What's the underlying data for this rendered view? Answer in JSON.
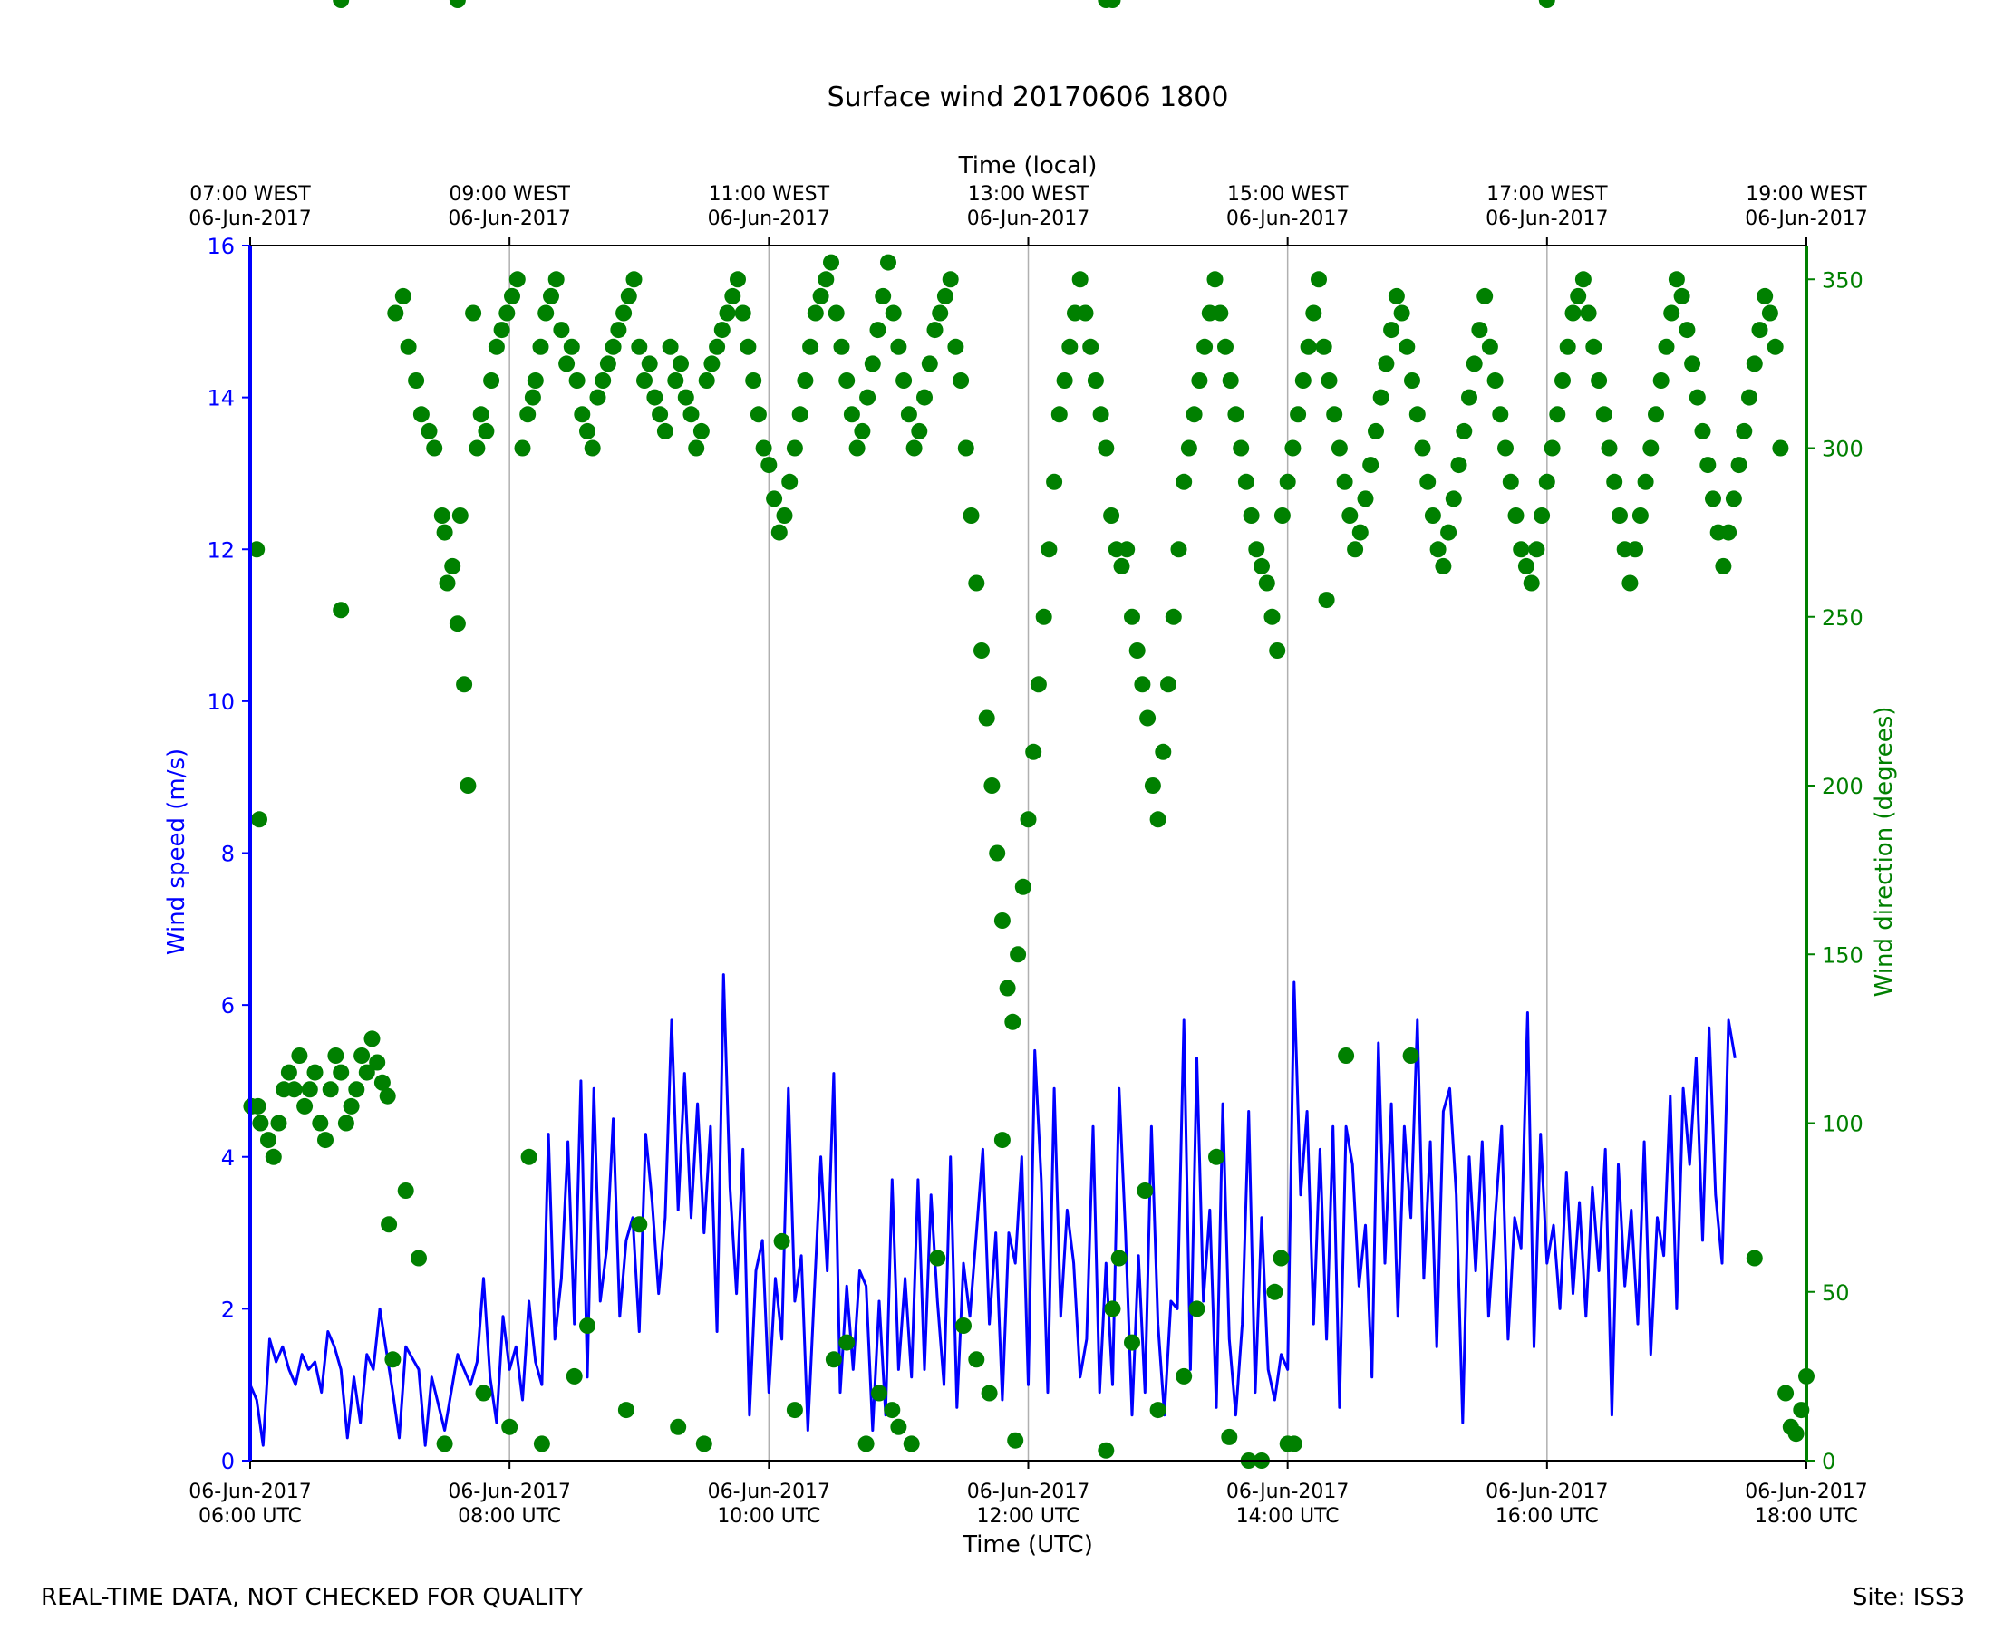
{
  "chart_data": {
    "type": "line+scatter",
    "title": "Surface wind 20170606 1800",
    "xlabel_bottom": "Time (UTC)",
    "xlabel_top": "Time (local)",
    "ylabel_left": "Wind speed (m/s)",
    "ylabel_right": "Wind direction (degrees)",
    "x_range_hours_utc": [
      6,
      18
    ],
    "ylim_left": [
      0,
      16
    ],
    "ylim_right": [
      0,
      360
    ],
    "grid": "vertical lines at 2-hour ticks",
    "colors": {
      "speed": "#0000ff",
      "direction": "#008000",
      "grid": "#b0b0b0"
    },
    "bottom_ticks": [
      {
        "hour": 6,
        "date": "06-Jun-2017",
        "time": "06:00 UTC"
      },
      {
        "hour": 8,
        "date": "06-Jun-2017",
        "time": "08:00 UTC"
      },
      {
        "hour": 10,
        "date": "06-Jun-2017",
        "time": "10:00 UTC"
      },
      {
        "hour": 12,
        "date": "06-Jun-2017",
        "time": "12:00 UTC"
      },
      {
        "hour": 14,
        "date": "06-Jun-2017",
        "time": "14:00 UTC"
      },
      {
        "hour": 16,
        "date": "06-Jun-2017",
        "time": "16:00 UTC"
      },
      {
        "hour": 18,
        "date": "06-Jun-2017",
        "time": "18:00 UTC"
      }
    ],
    "top_ticks": [
      {
        "hour": 6,
        "time": "07:00 WEST",
        "date": "06-Jun-2017"
      },
      {
        "hour": 8,
        "time": "09:00 WEST",
        "date": "06-Jun-2017"
      },
      {
        "hour": 10,
        "time": "11:00 WEST",
        "date": "06-Jun-2017"
      },
      {
        "hour": 12,
        "time": "13:00 WEST",
        "date": "06-Jun-2017"
      },
      {
        "hour": 14,
        "time": "15:00 WEST",
        "date": "06-Jun-2017"
      },
      {
        "hour": 16,
        "time": "17:00 WEST",
        "date": "06-Jun-2017"
      },
      {
        "hour": 18,
        "time": "19:00 WEST",
        "date": "06-Jun-2017"
      }
    ],
    "left_ticks": [
      "0",
      "2",
      "4",
      "6",
      "8",
      "10",
      "12",
      "14",
      "16"
    ],
    "right_ticks": [
      "0",
      "50",
      "100",
      "150",
      "200",
      "250",
      "300",
      "350"
    ],
    "wind_speed_series": {
      "x_hours_utc": [
        6.0,
        6.05,
        6.1,
        6.15,
        6.2,
        6.25,
        6.3,
        6.35,
        6.4,
        6.45,
        6.5,
        6.55,
        6.6,
        6.65,
        6.7,
        6.75,
        6.8,
        6.85,
        6.9,
        6.95,
        7.0,
        7.1,
        7.15,
        7.2,
        7.3,
        7.35,
        7.4,
        7.5,
        7.6,
        7.7,
        7.75,
        7.8,
        7.85,
        7.9,
        7.95,
        8.0,
        8.05,
        8.1,
        8.15,
        8.2,
        8.25,
        8.3,
        8.35,
        8.4,
        8.45,
        8.5,
        8.55,
        8.6,
        8.65,
        8.7,
        8.75,
        8.8,
        8.85,
        8.9,
        8.95,
        9.0,
        9.05,
        9.1,
        9.15,
        9.2,
        9.25,
        9.3,
        9.35,
        9.4,
        9.45,
        9.5,
        9.55,
        9.6,
        9.65,
        9.7,
        9.75,
        9.8,
        9.85,
        9.9,
        9.95,
        10.0,
        10.05,
        10.1,
        10.15,
        10.2,
        10.25,
        10.3,
        10.35,
        10.4,
        10.45,
        10.5,
        10.55,
        10.6,
        10.65,
        10.7,
        10.75,
        10.8,
        10.85,
        10.9,
        10.95,
        11.0,
        11.05,
        11.1,
        11.15,
        11.2,
        11.25,
        11.3,
        11.35,
        11.4,
        11.45,
        11.5,
        11.55,
        11.6,
        11.65,
        11.7,
        11.75,
        11.8,
        11.85,
        11.9,
        11.95,
        12.0,
        12.05,
        12.1,
        12.15,
        12.2,
        12.25,
        12.3,
        12.35,
        12.4,
        12.45,
        12.5,
        12.55,
        12.6,
        12.65,
        12.7,
        12.75,
        12.8,
        12.85,
        12.9,
        12.95,
        13.0,
        13.05,
        13.1,
        13.15,
        13.2,
        13.25,
        13.3,
        13.35,
        13.4,
        13.45,
        13.5,
        13.55,
        13.6,
        13.65,
        13.7,
        13.75,
        13.8,
        13.85,
        13.9,
        13.95,
        14.0,
        14.05,
        14.1,
        14.15,
        14.2,
        14.25,
        14.3,
        14.35,
        14.4,
        14.45,
        14.5,
        14.55,
        14.6,
        14.65,
        14.7,
        14.75,
        14.8,
        14.85,
        14.9,
        14.95,
        15.0,
        15.05,
        15.1,
        15.15,
        15.2,
        15.25,
        15.3,
        15.35,
        15.4,
        15.45,
        15.5,
        15.55,
        15.6,
        15.65,
        15.7,
        15.75,
        15.8,
        15.85,
        15.9,
        15.95,
        16.0,
        16.05,
        16.1,
        16.15,
        16.2,
        16.25,
        16.3,
        16.35,
        16.4,
        16.45,
        16.5,
        16.55,
        16.6,
        16.65,
        16.7,
        16.75,
        16.8,
        16.85,
        16.9,
        16.95,
        17.0,
        17.05,
        17.1,
        17.15,
        17.2,
        17.25,
        17.3,
        17.35,
        17.4,
        17.45,
        17.5,
        17.55,
        17.6,
        17.65,
        17.7,
        17.75,
        17.8,
        17.85,
        17.9,
        17.95,
        18.0
      ],
      "values_m_s": [
        1.0,
        0.8,
        0.2,
        1.6,
        1.3,
        1.5,
        1.2,
        1.0,
        1.4,
        1.2,
        1.3,
        0.9,
        1.7,
        1.5,
        1.2,
        0.3,
        1.1,
        0.5,
        1.4,
        1.2,
        2.0,
        0.9,
        0.3,
        1.5,
        1.2,
        0.2,
        1.1,
        0.4,
        1.4,
        1.0,
        1.3,
        2.4,
        1.1,
        0.5,
        1.9,
        1.2,
        1.5,
        0.8,
        2.1,
        1.3,
        1.0,
        4.3,
        1.6,
        2.4,
        4.2,
        1.8,
        5.0,
        1.1,
        4.9,
        2.1,
        2.8,
        4.5,
        1.9,
        2.9,
        3.2,
        1.7,
        4.3,
        3.4,
        2.2,
        3.2,
        5.8,
        3.3,
        5.1,
        3.2,
        4.7,
        3.0,
        4.4,
        1.7,
        6.4,
        3.6,
        2.2,
        4.1,
        0.6,
        2.5,
        2.9,
        0.9,
        2.4,
        1.6,
        4.9,
        2.1,
        2.7,
        0.4,
        2.2,
        4.0,
        2.5,
        5.1,
        0.9,
        2.3,
        1.2,
        2.5,
        2.3,
        0.4,
        2.1,
        0.6,
        3.7,
        1.2,
        2.4,
        1.1,
        3.7,
        1.2,
        3.5,
        2.1,
        1.0,
        4.0,
        0.7,
        2.6,
        1.9,
        3.0,
        4.1,
        1.8,
        3.0,
        0.8,
        3.0,
        2.6,
        4.0,
        1.0,
        5.4,
        3.7,
        0.9,
        4.9,
        1.9,
        3.3,
        2.6,
        1.1,
        1.6,
        4.4,
        0.9,
        2.6,
        1.0,
        4.9,
        3.0,
        0.6,
        2.7,
        0.9,
        4.4,
        1.8,
        0.6,
        2.1,
        2.0,
        5.8,
        1.2,
        5.3,
        2.1,
        3.3,
        0.7,
        4.7,
        1.6,
        0.6,
        1.8,
        4.6,
        0.9,
        3.2,
        1.2,
        0.8,
        1.4,
        1.2,
        6.3,
        3.5,
        4.6,
        1.8,
        4.1,
        1.6,
        4.4,
        0.7,
        4.4,
        3.9,
        2.3,
        3.1,
        1.1,
        5.5,
        2.6,
        4.7,
        1.9,
        4.4,
        3.2,
        5.8,
        2.4,
        4.2,
        1.5,
        4.6,
        4.9,
        3.5,
        0.5,
        4.0,
        2.5,
        4.2,
        1.9,
        3.2,
        4.4,
        1.6,
        3.2,
        2.8,
        5.9,
        1.5,
        4.3,
        2.6,
        3.1,
        2.0,
        3.8,
        2.2,
        3.4,
        1.9,
        3.6,
        2.5,
        4.1,
        0.6,
        3.9,
        2.3,
        3.3,
        1.8,
        4.2,
        1.4,
        3.2,
        2.7,
        4.8,
        2.0,
        4.9,
        3.9,
        5.3,
        2.9,
        5.7,
        3.5,
        2.6,
        5.8,
        5.3
      ]
    },
    "wind_direction_series": {
      "x_hours_utc": [
        6.01,
        6.06,
        6.08,
        6.14,
        6.18,
        6.22,
        6.26,
        6.3,
        6.34,
        6.38,
        6.42,
        6.46,
        6.5,
        6.54,
        6.58,
        6.62,
        6.66,
        6.7,
        6.74,
        6.78,
        6.82,
        6.86,
        6.9,
        6.94,
        6.98,
        7.02,
        7.06,
        6.05,
        6.07,
        6.7,
        7.07,
        7.12,
        7.18,
        7.22,
        7.28,
        7.32,
        7.38,
        7.42,
        7.48,
        7.5,
        7.52,
        7.56,
        7.6,
        7.62,
        7.65,
        7.68,
        7.72,
        7.75,
        7.78,
        7.82,
        7.86,
        7.9,
        7.94,
        7.98,
        8.02,
        8.06,
        8.1,
        8.14,
        8.18,
        8.2,
        8.24,
        8.28,
        8.32,
        8.36,
        8.4,
        8.44,
        8.48,
        8.52,
        8.56,
        8.6,
        8.64,
        8.68,
        8.72,
        8.76,
        8.8,
        8.84,
        8.88,
        8.92,
        8.96,
        9.0,
        9.04,
        9.08,
        9.12,
        9.16,
        9.2,
        9.24,
        9.28,
        9.32,
        9.36,
        9.4,
        9.44,
        9.48,
        9.52,
        9.56,
        9.6,
        9.64,
        9.68,
        9.72,
        9.76,
        9.8,
        9.84,
        9.88,
        9.92,
        9.96,
        10.0,
        10.04,
        10.08,
        10.12,
        10.16,
        10.2,
        10.24,
        10.28,
        10.32,
        10.36,
        10.4,
        10.44,
        10.48,
        10.52,
        10.56,
        10.6,
        10.64,
        10.68,
        10.72,
        10.76,
        10.8,
        10.84,
        10.88,
        10.92,
        10.96,
        11.0,
        11.04,
        11.08,
        11.12,
        11.16,
        11.2,
        11.24,
        11.28,
        11.32,
        11.36,
        11.4,
        11.44,
        11.48,
        11.52,
        11.56,
        11.6,
        11.64,
        11.68,
        11.72,
        11.76,
        11.8,
        11.84,
        11.88,
        11.92,
        11.96,
        12.0,
        12.04,
        12.08,
        12.12,
        12.16,
        12.2,
        12.24,
        12.28,
        12.32,
        12.36,
        12.4,
        12.44,
        12.48,
        12.52,
        12.56,
        12.6,
        12.64,
        12.68,
        12.72,
        12.76,
        12.8,
        12.84,
        12.88,
        12.92,
        12.96,
        13.0,
        13.04,
        13.08,
        13.12,
        13.16,
        13.2,
        13.24,
        13.28,
        13.32,
        13.36,
        13.4,
        13.44,
        13.48,
        13.52,
        13.56,
        13.6,
        13.64,
        13.68,
        13.72,
        13.76,
        13.8,
        13.84,
        13.88,
        13.92,
        13.96,
        14.0,
        14.04,
        14.08,
        14.12,
        14.16,
        14.2,
        14.24,
        14.28,
        14.32,
        14.36,
        14.4,
        14.44,
        14.48,
        14.52,
        14.56,
        14.6,
        14.64,
        14.68,
        14.72,
        14.76,
        14.8,
        14.84,
        14.88,
        14.92,
        14.96,
        15.0,
        15.04,
        15.08,
        15.12,
        15.16,
        15.2,
        15.24,
        15.28,
        15.32,
        15.36,
        15.4,
        15.44,
        15.48,
        15.52,
        15.56,
        15.6,
        15.64,
        15.68,
        15.72,
        15.76,
        15.8,
        15.84,
        15.88,
        15.92,
        15.96,
        16.0,
        16.04,
        16.08,
        16.12,
        16.16,
        16.2,
        16.24,
        16.28,
        16.32,
        16.36,
        16.4,
        16.44,
        16.48,
        16.52,
        16.56,
        16.6,
        16.64,
        16.68,
        16.72,
        16.76,
        16.8,
        16.84,
        16.88,
        16.92,
        16.96,
        17.0,
        17.04,
        17.08,
        17.12,
        17.16,
        17.2,
        17.24,
        17.28,
        17.32,
        17.36,
        17.4,
        17.44,
        17.48,
        17.52,
        17.56,
        17.6,
        17.64,
        17.68,
        17.72,
        17.76,
        17.8,
        17.84,
        17.88,
        17.92,
        17.96,
        18.0,
        7.1,
        7.2,
        7.3,
        7.5,
        7.8,
        8.0,
        8.15,
        8.25,
        8.5,
        8.6,
        8.9,
        9.0,
        9.3,
        9.5,
        10.1,
        10.2,
        10.5,
        10.6,
        10.75,
        10.85,
        10.95,
        11.0,
        11.1,
        11.3,
        11.5,
        11.6,
        11.7,
        11.8,
        11.9,
        12.6,
        12.65,
        12.7,
        12.8,
        12.9,
        13.0,
        13.2,
        13.3,
        13.45,
        13.55,
        13.7,
        13.8,
        13.9,
        13.95,
        14.0,
        14.05,
        14.3,
        14.45,
        14.95,
        17.6,
        16.0,
        7.6,
        6.7,
        12.65,
        12.6
      ],
      "values_deg": [
        105,
        105,
        100,
        95,
        90,
        100,
        110,
        115,
        110,
        120,
        105,
        110,
        115,
        100,
        95,
        110,
        120,
        115,
        100,
        105,
        110,
        120,
        115,
        125,
        118,
        112,
        108,
        270,
        190,
        252,
        70,
        340,
        345,
        330,
        320,
        310,
        305,
        300,
        280,
        275,
        260,
        265,
        248,
        280,
        230,
        200,
        340,
        300,
        310,
        305,
        320,
        330,
        335,
        340,
        345,
        350,
        300,
        310,
        315,
        320,
        330,
        340,
        345,
        350,
        335,
        325,
        330,
        320,
        310,
        305,
        300,
        315,
        320,
        325,
        330,
        335,
        340,
        345,
        350,
        330,
        320,
        325,
        315,
        310,
        305,
        330,
        320,
        325,
        315,
        310,
        300,
        305,
        320,
        325,
        330,
        335,
        340,
        345,
        350,
        340,
        330,
        320,
        310,
        300,
        295,
        285,
        275,
        280,
        290,
        300,
        310,
        320,
        330,
        340,
        345,
        350,
        355,
        340,
        330,
        320,
        310,
        300,
        305,
        315,
        325,
        335,
        345,
        355,
        340,
        330,
        320,
        310,
        300,
        305,
        315,
        325,
        335,
        340,
        345,
        350,
        330,
        320,
        300,
        280,
        260,
        240,
        220,
        200,
        180,
        160,
        140,
        130,
        150,
        170,
        190,
        210,
        230,
        250,
        270,
        290,
        310,
        320,
        330,
        340,
        350,
        340,
        330,
        320,
        310,
        300,
        280,
        270,
        265,
        270,
        250,
        240,
        230,
        220,
        200,
        190,
        210,
        230,
        250,
        270,
        290,
        300,
        310,
        320,
        330,
        340,
        350,
        340,
        330,
        320,
        310,
        300,
        290,
        280,
        270,
        265,
        260,
        250,
        240,
        280,
        290,
        300,
        310,
        320,
        330,
        340,
        350,
        330,
        320,
        310,
        300,
        290,
        280,
        270,
        275,
        285,
        295,
        305,
        315,
        325,
        335,
        345,
        340,
        330,
        320,
        310,
        300,
        290,
        280,
        270,
        265,
        275,
        285,
        295,
        305,
        315,
        325,
        335,
        345,
        330,
        320,
        310,
        300,
        290,
        280,
        270,
        265,
        260,
        270,
        280,
        290,
        300,
        310,
        320,
        330,
        340,
        345,
        350,
        340,
        330,
        320,
        310,
        300,
        290,
        280,
        270,
        260,
        270,
        280,
        290,
        300,
        310,
        320,
        330,
        340,
        350,
        345,
        335,
        325,
        315,
        305,
        295,
        285,
        275,
        265,
        275,
        285,
        295,
        305,
        315,
        325,
        335,
        345,
        340,
        330,
        300,
        20,
        10,
        8,
        15,
        25,
        30,
        80,
        60,
        5,
        20,
        10,
        90,
        5,
        25,
        40,
        15,
        70,
        10,
        5,
        65,
        15,
        30,
        35,
        5,
        20,
        15,
        10,
        5,
        60,
        40,
        30,
        20,
        95,
        6,
        3,
        45,
        60,
        35,
        80,
        15,
        25,
        45,
        90,
        7,
        0,
        0,
        50,
        60,
        5,
        5,
        255,
        120,
        120,
        60
      ]
    }
  },
  "footer": {
    "left": "REAL-TIME DATA, NOT CHECKED FOR QUALITY",
    "right": "Site: ISS3"
  }
}
